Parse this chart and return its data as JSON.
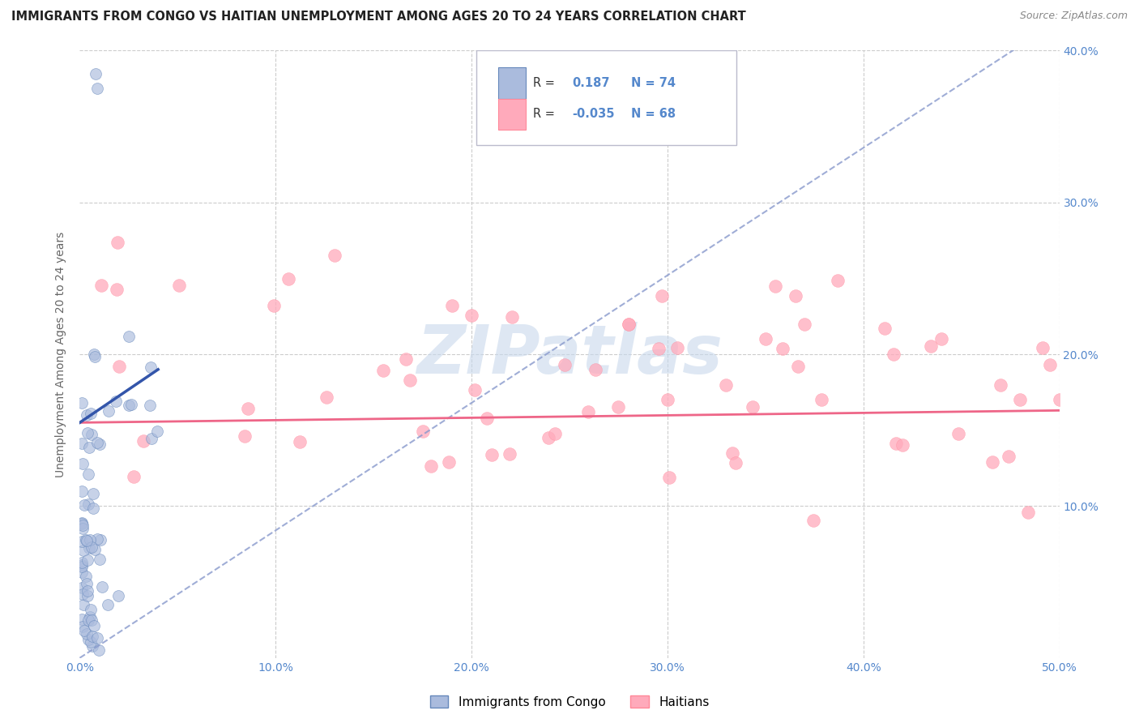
{
  "title": "IMMIGRANTS FROM CONGO VS HAITIAN UNEMPLOYMENT AMONG AGES 20 TO 24 YEARS CORRELATION CHART",
  "source": "Source: ZipAtlas.com",
  "ylabel": "Unemployment Among Ages 20 to 24 years",
  "xlim": [
    0.0,
    0.5
  ],
  "ylim": [
    0.0,
    0.4
  ],
  "legend_label1": "Immigrants from Congo",
  "legend_label2": "Haitians",
  "R1": "0.187",
  "N1": "74",
  "R2": "-0.035",
  "N2": "68",
  "color_congo": "#AABBDD",
  "color_congo_edge": "#6688BB",
  "color_haiti": "#FFAABB",
  "color_haiti_edge": "#FF8899",
  "color_trend_congo_dashed": "#8899CC",
  "color_trend_congo_solid": "#3355AA",
  "color_trend_haiti": "#EE6688",
  "watermark_color": "#C8D8EC",
  "background_color": "#FFFFFF",
  "grid_color": "#CCCCCC",
  "tick_color": "#5588CC",
  "title_color": "#222222",
  "source_color": "#888888",
  "ylabel_color": "#666666"
}
